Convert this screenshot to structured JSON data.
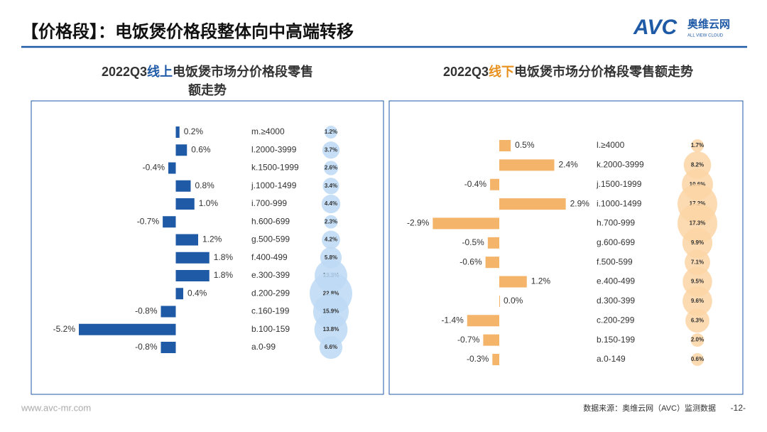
{
  "header": {
    "title": "【价格段】：电饭煲价格段整体向中高端转移",
    "logo": "AVC",
    "logo_cn": "奥维云网",
    "logo_en": "ALL VIEW CLOUD"
  },
  "footer": {
    "website": "www.avc-mr.com",
    "source": "数据来源：奥维云网（AVC）监测数据",
    "page": "-12-"
  },
  "chart_data": [
    {
      "type": "bar",
      "orientation": "horizontal",
      "title_parts": [
        {
          "text": "2022Q3",
          "color": "#333333"
        },
        {
          "text": "线上",
          "color": "#1f5aa6"
        },
        {
          "text": "电饭煲市场分价格段零售额走势",
          "color": "#333333"
        }
      ],
      "categories": [
        "m.≥4000",
        "l.2000-3999",
        "k.1500-1999",
        "j.1000-1499",
        "i.700-999",
        "h.600-699",
        "g.500-599",
        "f.400-499",
        "e.300-399",
        "d.200-299",
        "c.160-199",
        "b.100-159",
        "a.0-99"
      ],
      "xlim": [
        -6,
        2
      ],
      "series": [
        {
          "color": "#1f5aa6",
          "values": [
            0.2,
            0.6,
            -0.4,
            0.8,
            1.0,
            -0.7,
            1.2,
            1.8,
            1.8,
            0.4,
            -0.8,
            -5.2,
            -0.8
          ],
          "value_labels": [
            "0.2%",
            "0.6%",
            "-0.4%",
            "0.8%",
            "1.0%",
            "-0.7%",
            "1.2%",
            "1.8%",
            "1.8%",
            "0.4%",
            "-0.8%",
            "-5.2%",
            "-0.8%"
          ]
        },
        {
          "type": "bubble",
          "color": "#bcd9f5",
          "values": [
            1.2,
            3.7,
            2.6,
            3.4,
            4.4,
            2.3,
            4.2,
            5.8,
            13.3,
            22.8,
            15.9,
            13.8,
            6.6
          ],
          "value_labels": [
            "1.2%",
            "3.7%",
            "2.6%",
            "3.4%",
            "4.4%",
            "2.3%",
            "4.2%",
            "5.8%",
            "13.3%",
            "22.8%",
            "15.9%",
            "13.8%",
            "6.6%"
          ]
        }
      ]
    },
    {
      "type": "bar",
      "orientation": "horizontal",
      "title_parts": [
        {
          "text": "2022Q3",
          "color": "#333333"
        },
        {
          "text": "线下",
          "color": "#e8901c"
        },
        {
          "text": "电饭煲市场分价格段零售额走势",
          "color": "#333333"
        }
      ],
      "categories": [
        "l.≥4000",
        "k.2000-3999",
        "j.1500-1999",
        "i.1000-1499",
        "h.700-999",
        "g.600-699",
        "f.500-599",
        "e.400-499",
        "d.300-399",
        "c.200-299",
        "b.150-199",
        "a.0-149"
      ],
      "xlim": [
        -3.5,
        3.5
      ],
      "series": [
        {
          "color": "#f4b469",
          "values": [
            0.5,
            2.4,
            -0.4,
            2.9,
            -2.9,
            -0.5,
            -0.6,
            1.2,
            0.0,
            -1.4,
            -0.7,
            -0.3
          ],
          "value_labels": [
            "0.5%",
            "2.4%",
            "-0.4%",
            "2.9%",
            "-2.9%",
            "-0.5%",
            "-0.6%",
            "1.2%",
            "0.0%",
            "-1.4%",
            "-0.7%",
            "-0.3%"
          ]
        },
        {
          "type": "bubble",
          "color": "#fbd5a4",
          "values": [
            1.7,
            8.2,
            10.6,
            17.2,
            17.3,
            9.9,
            7.1,
            9.5,
            9.6,
            6.3,
            2.0,
            0.6
          ],
          "value_labels": [
            "1.7%",
            "8.2%",
            "10.6%",
            "17.2%",
            "17.3%",
            "9.9%",
            "7.1%",
            "9.5%",
            "9.6%",
            "6.3%",
            "2.0%",
            "0.6%"
          ]
        }
      ]
    }
  ]
}
